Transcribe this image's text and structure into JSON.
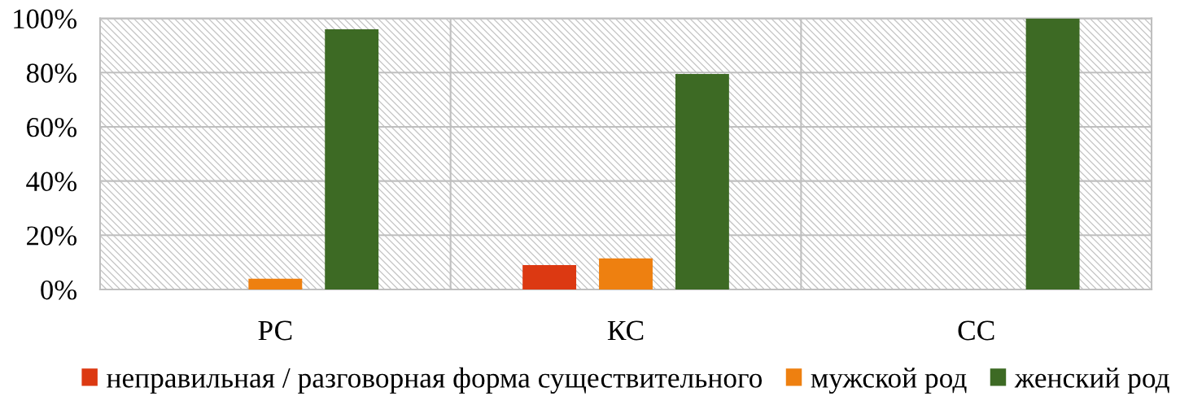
{
  "chart_data": {
    "type": "bar",
    "categories": [
      "РС",
      "КС",
      "СС"
    ],
    "series": [
      {
        "name": "неправильная / разговорная форма существительного",
        "color": "#dc3912",
        "values": [
          0,
          9,
          0
        ]
      },
      {
        "name": "мужской род",
        "color": "#ee8010",
        "values": [
          4,
          11.5,
          0
        ]
      },
      {
        "name": "женский род",
        "color": "#3d6a24",
        "values": [
          96,
          79.5,
          100
        ]
      }
    ],
    "ylim": [
      0,
      100
    ],
    "yticks": [
      {
        "value": 0,
        "label": "0%"
      },
      {
        "value": 20,
        "label": "20%"
      },
      {
        "value": 40,
        "label": "40%"
      },
      {
        "value": 60,
        "label": "60%"
      },
      {
        "value": 80,
        "label": "80%"
      },
      {
        "value": 100,
        "label": "100%"
      }
    ],
    "grid": true,
    "legend": "bottom"
  }
}
